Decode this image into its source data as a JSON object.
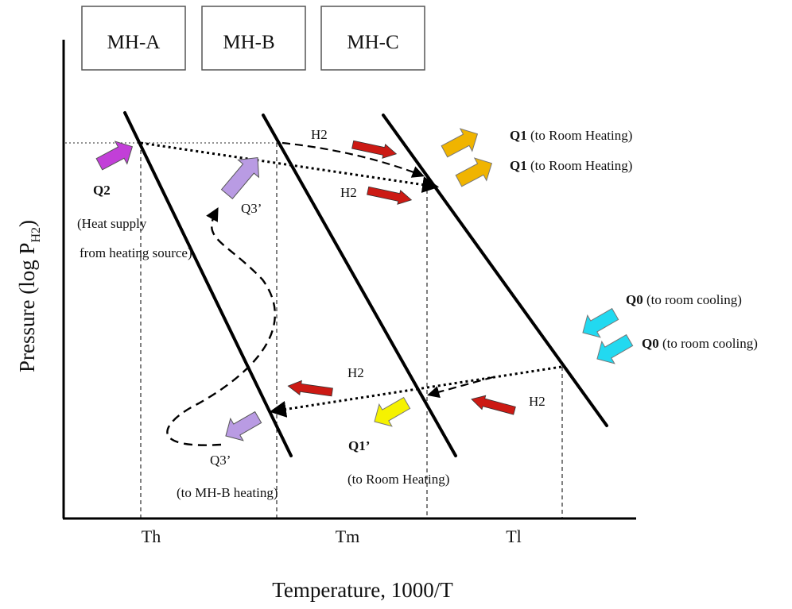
{
  "alloys": [
    "MH-A",
    "MH-B",
    "MH-C"
  ],
  "axes": {
    "y_label_prefix": "Pressure    (log P",
    "y_label_sub": "H2",
    "y_label_suffix": ")",
    "x_label": "Temperature, 1000/T",
    "x_ticks": [
      "Th",
      "Tm",
      "Tl"
    ]
  },
  "labels": {
    "q2": "Q2",
    "q2_desc_1": "(Heat supply",
    "q2_desc_2": "from heating source)",
    "q3p_top": "Q3’",
    "q3p_bottom": "Q3’",
    "q3p_bottom_desc": "(to MH-B heating)",
    "h2_top_1": "H2",
    "h2_top_2": "H2",
    "h2_bottom_1": "H2",
    "h2_bottom_2": "H2",
    "q1": "Q1",
    "q1_desc": " (to Room Heating)",
    "q1b": "Q1",
    "q1b_desc": " (to Room Heating)",
    "q0": "Q0",
    "q0_desc": " (to room cooling)",
    "q0b": "Q0",
    "q0b_desc": " (to room cooling)",
    "q1p": "Q1’",
    "q1p_desc": "(to Room Heating)"
  },
  "colors": {
    "q2_arrow": "#c23fd8",
    "q3_arrow": "#b99be3",
    "q1_arrow": "#f0b400",
    "q0_arrow": "#22d9f0",
    "q1p_arrow": "#f5f200",
    "h2_arrow": "#cc1a14"
  }
}
